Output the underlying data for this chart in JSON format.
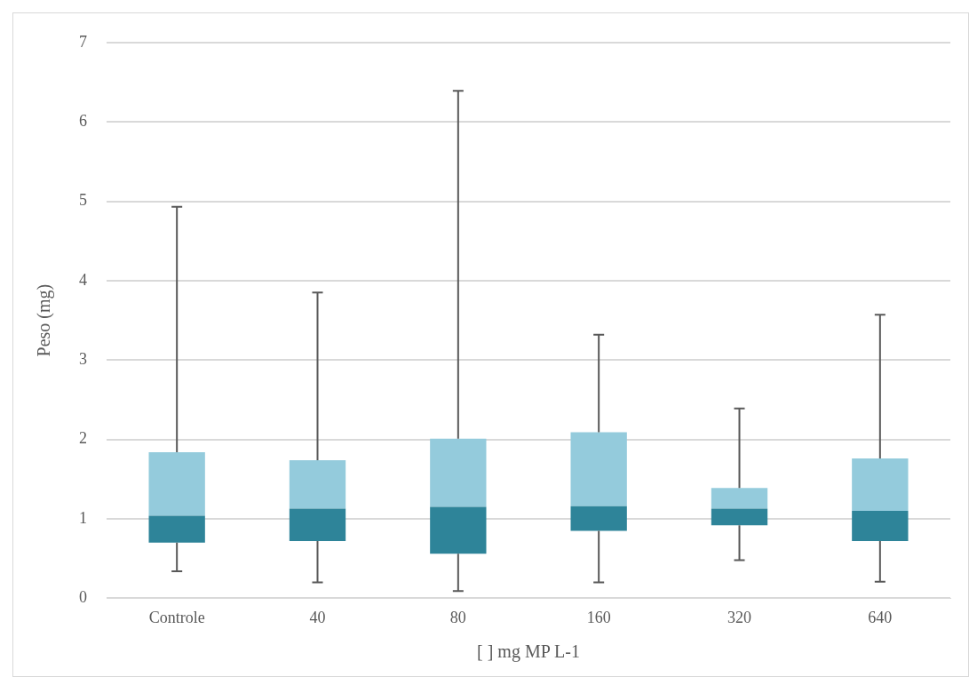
{
  "chart_data": {
    "type": "box",
    "xlabel": "[ ] mg MP L-1",
    "ylabel": "Peso (mg)",
    "categories": [
      "Controle",
      "40",
      "80",
      "160",
      "320",
      "640"
    ],
    "boxes": [
      {
        "low": 0.34,
        "q1": 0.7,
        "median": 1.04,
        "q3": 1.84,
        "high": 4.93
      },
      {
        "low": 0.2,
        "q1": 0.72,
        "median": 1.13,
        "q3": 1.74,
        "high": 3.85
      },
      {
        "low": 0.09,
        "q1": 0.56,
        "median": 1.15,
        "q3": 2.01,
        "high": 6.39
      },
      {
        "low": 0.2,
        "q1": 0.85,
        "median": 1.16,
        "q3": 2.09,
        "high": 3.32
      },
      {
        "low": 0.48,
        "q1": 0.92,
        "median": 1.13,
        "q3": 1.39,
        "high": 2.39
      },
      {
        "low": 0.21,
        "q1": 0.72,
        "median": 1.1,
        "q3": 1.76,
        "high": 3.57
      }
    ],
    "colors": [
      "#2e8499",
      "#2e8499",
      "#2e8499",
      "#2e8499",
      "#2e8499",
      "#2e8499"
    ],
    "color": "#94cbdc",
    "ylim": [
      0,
      7
    ],
    "yticks": [
      0,
      1,
      2,
      3,
      4,
      5,
      6,
      7
    ],
    "grid": "y",
    "legend": false
  }
}
